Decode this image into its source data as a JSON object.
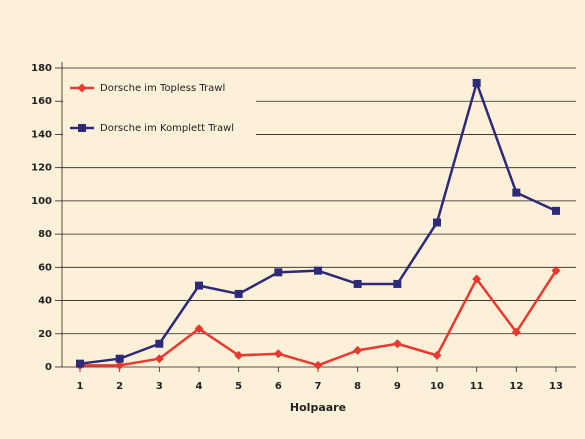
{
  "chart_data": {
    "type": "line",
    "x_label": "Holpaare",
    "categories": [
      "1",
      "2",
      "3",
      "4",
      "5",
      "6",
      "7",
      "8",
      "9",
      "10",
      "11",
      "12",
      "13"
    ],
    "series": [
      {
        "name": "Dorsche im Topless Trawl",
        "color": "#e8392f",
        "marker": "diamond",
        "values": [
          1,
          1,
          5,
          23,
          7,
          8,
          1,
          10,
          14,
          7,
          53,
          21,
          58
        ]
      },
      {
        "name": "Dorsche im Komplett Trawl",
        "color": "#2e2a7a",
        "marker": "square",
        "values": [
          2,
          5,
          14,
          49,
          44,
          57,
          58,
          50,
          50,
          87,
          171,
          105,
          94
        ]
      }
    ],
    "ylim": [
      0,
      180
    ],
    "yticks": [
      0,
      20,
      40,
      60,
      80,
      100,
      120,
      140,
      160,
      180
    ],
    "grid": true
  }
}
